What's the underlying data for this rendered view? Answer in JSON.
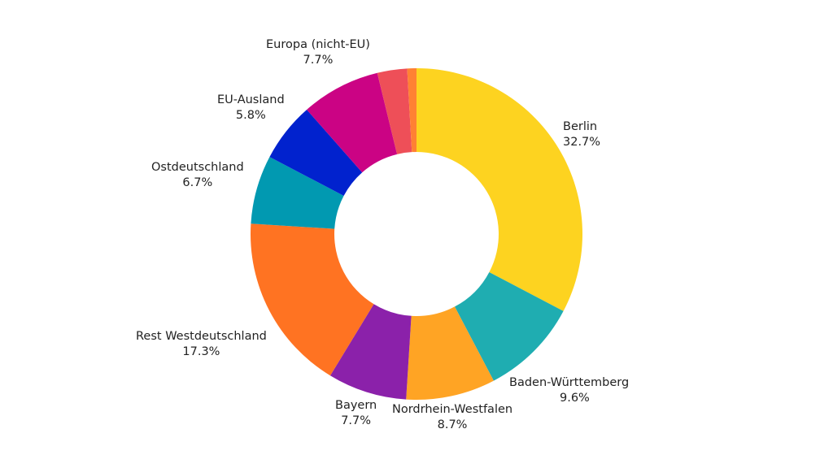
{
  "chart_data": {
    "type": "pie",
    "donut": true,
    "start": "top",
    "direction": "clockwise",
    "slices": [
      {
        "label": "Berlin",
        "value": 32.7,
        "value_label": "32.7%",
        "color": "#FDD320"
      },
      {
        "label": "Baden-Württemberg",
        "value": 9.6,
        "value_label": "9.6%",
        "color": "#1FADB1"
      },
      {
        "label": "Nordrhein-Westfalen",
        "value": 8.7,
        "value_label": "8.7%",
        "color": "#FFA424"
      },
      {
        "label": "Bayern",
        "value": 7.7,
        "value_label": "7.7%",
        "color": "#8B21AA"
      },
      {
        "label": "Rest Westdeutschland",
        "value": 17.3,
        "value_label": "17.3%",
        "color": "#FF7322"
      },
      {
        "label": "Ostdeutschland",
        "value": 6.7,
        "value_label": "6.7%",
        "color": "#0199B1"
      },
      {
        "label": "EU-Ausland",
        "value": 5.8,
        "value_label": "5.8%",
        "color": "#0122CE"
      },
      {
        "label": "Europa (nicht-EU)",
        "value": 7.7,
        "value_label": "7.7%",
        "color": "#CB0384"
      },
      {
        "label": "",
        "value": 2.9,
        "value_label": "",
        "color": "#EE4F58"
      },
      {
        "label": "",
        "value": 0.9,
        "value_label": "",
        "color": "#FF8133"
      }
    ]
  }
}
